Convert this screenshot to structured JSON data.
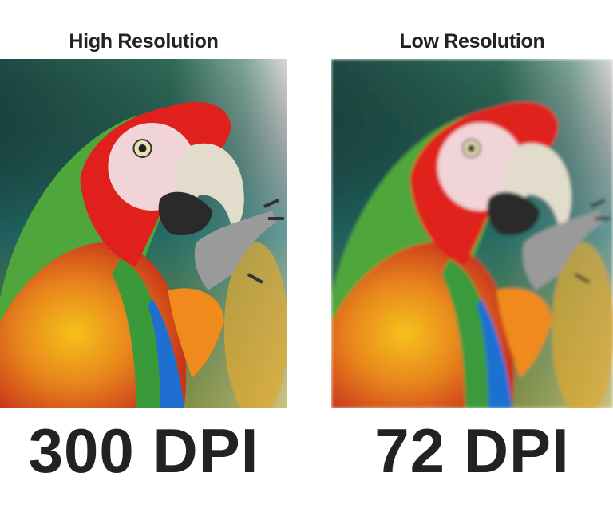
{
  "left": {
    "title": "High Resolution",
    "dpi_label": "300 DPI"
  },
  "right": {
    "title": "Low Resolution",
    "dpi_label": "72 DPI"
  }
}
